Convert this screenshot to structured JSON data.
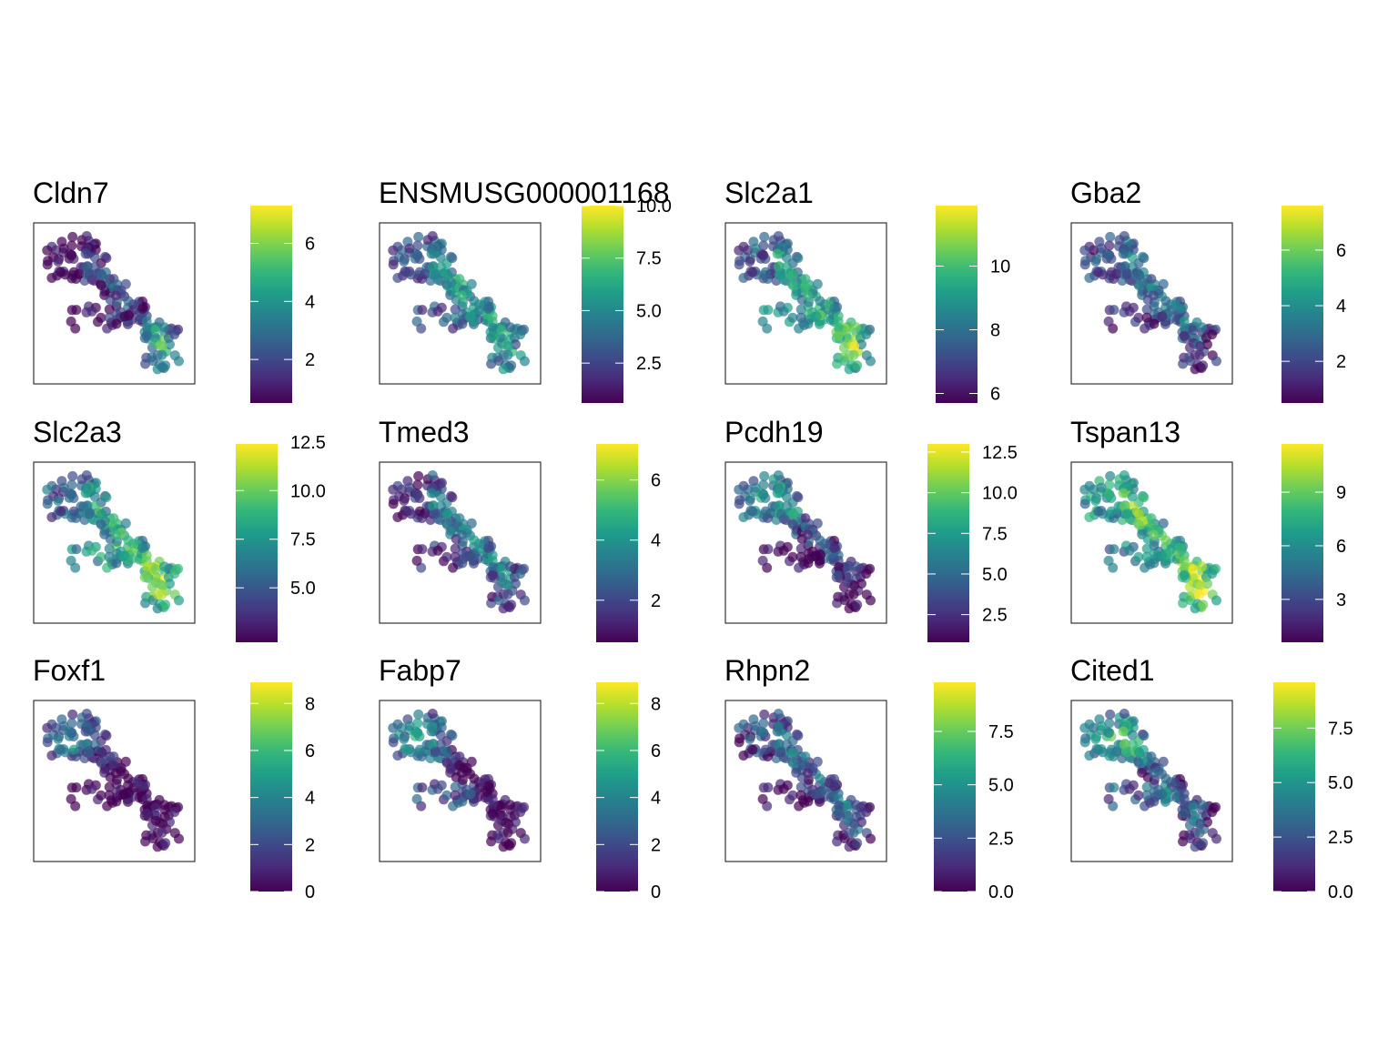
{
  "chart_data": [
    {
      "type": "scatter",
      "title": "Cldn7",
      "colorbar": {
        "ticks": [
          "2",
          "4",
          "6"
        ],
        "tick_values": [
          2,
          4,
          6
        ],
        "range": [
          0.5,
          7.3
        ]
      },
      "pattern": "cldn7"
    },
    {
      "type": "scatter",
      "title": "ENSMUSG000001168",
      "colorbar": {
        "ticks": [
          "2.5",
          "5.0",
          "7.5",
          "10.0"
        ],
        "tick_values": [
          2.5,
          5.0,
          7.5,
          10.0
        ],
        "range": [
          0.6,
          10.0
        ]
      },
      "pattern": "ensmusg"
    },
    {
      "type": "scatter",
      "title": "Slc2a1",
      "colorbar": {
        "ticks": [
          "6",
          "8",
          "10"
        ],
        "tick_values": [
          6,
          8,
          10
        ],
        "range": [
          5.7,
          11.9
        ]
      },
      "pattern": "slc2a1"
    },
    {
      "type": "scatter",
      "title": "Gba2",
      "colorbar": {
        "ticks": [
          "2",
          "4",
          "6"
        ],
        "tick_values": [
          2,
          4,
          6
        ],
        "range": [
          0.5,
          7.6
        ]
      },
      "pattern": "gba2"
    },
    {
      "type": "scatter",
      "title": "Slc2a3",
      "colorbar": {
        "ticks": [
          "5.0",
          "7.5",
          "10.0",
          "12.5"
        ],
        "tick_values": [
          5.0,
          7.5,
          10.0,
          12.5
        ],
        "range": [
          2.2,
          12.4
        ]
      },
      "pattern": "slc2a3"
    },
    {
      "type": "scatter",
      "title": "Tmed3",
      "colorbar": {
        "ticks": [
          "2",
          "4",
          "6"
        ],
        "tick_values": [
          2,
          4,
          6
        ],
        "range": [
          0.6,
          7.2
        ]
      },
      "pattern": "tmed3"
    },
    {
      "type": "scatter",
      "title": "Pcdh19",
      "colorbar": {
        "ticks": [
          "2.5",
          "5.0",
          "7.5",
          "10.0",
          "12.5"
        ],
        "tick_values": [
          2.5,
          5.0,
          7.5,
          10.0,
          12.5
        ],
        "range": [
          0.8,
          13.0
        ]
      },
      "pattern": "pcdh19"
    },
    {
      "type": "scatter",
      "title": "Tspan13",
      "colorbar": {
        "ticks": [
          "3",
          "6",
          "9"
        ],
        "tick_values": [
          3,
          6,
          9
        ],
        "range": [
          0.6,
          11.7
        ]
      },
      "pattern": "tspan13"
    },
    {
      "type": "scatter",
      "title": "Foxf1",
      "colorbar": {
        "ticks": [
          "0",
          "2",
          "4",
          "6",
          "8"
        ],
        "tick_values": [
          0,
          2,
          4,
          6,
          8
        ],
        "range": [
          0,
          8.9
        ]
      },
      "pattern": "foxf1"
    },
    {
      "type": "scatter",
      "title": "Fabp7",
      "colorbar": {
        "ticks": [
          "0",
          "2",
          "4",
          "6",
          "8"
        ],
        "tick_values": [
          0,
          2,
          4,
          6,
          8
        ],
        "range": [
          0,
          8.9
        ]
      },
      "pattern": "fabp7"
    },
    {
      "type": "scatter",
      "title": "Rhpn2",
      "colorbar": {
        "ticks": [
          "0.0",
          "2.5",
          "5.0",
          "7.5"
        ],
        "tick_values": [
          0.0,
          2.5,
          5.0,
          7.5
        ],
        "range": [
          0,
          9.8
        ]
      },
      "pattern": "rhpn2"
    },
    {
      "type": "scatter",
      "title": "Cited1",
      "colorbar": {
        "ticks": [
          "0.0",
          "2.5",
          "5.0",
          "7.5"
        ],
        "tick_values": [
          0.0,
          2.5,
          5.0,
          7.5
        ],
        "range": [
          0,
          9.6
        ]
      },
      "pattern": "cited1"
    }
  ],
  "colors": {
    "viridis": [
      "#440154",
      "#482878",
      "#3E4A89",
      "#31688E",
      "#26828E",
      "#1F9E89",
      "#35B779",
      "#6DCD59",
      "#B4DE2C",
      "#FDE725"
    ]
  }
}
